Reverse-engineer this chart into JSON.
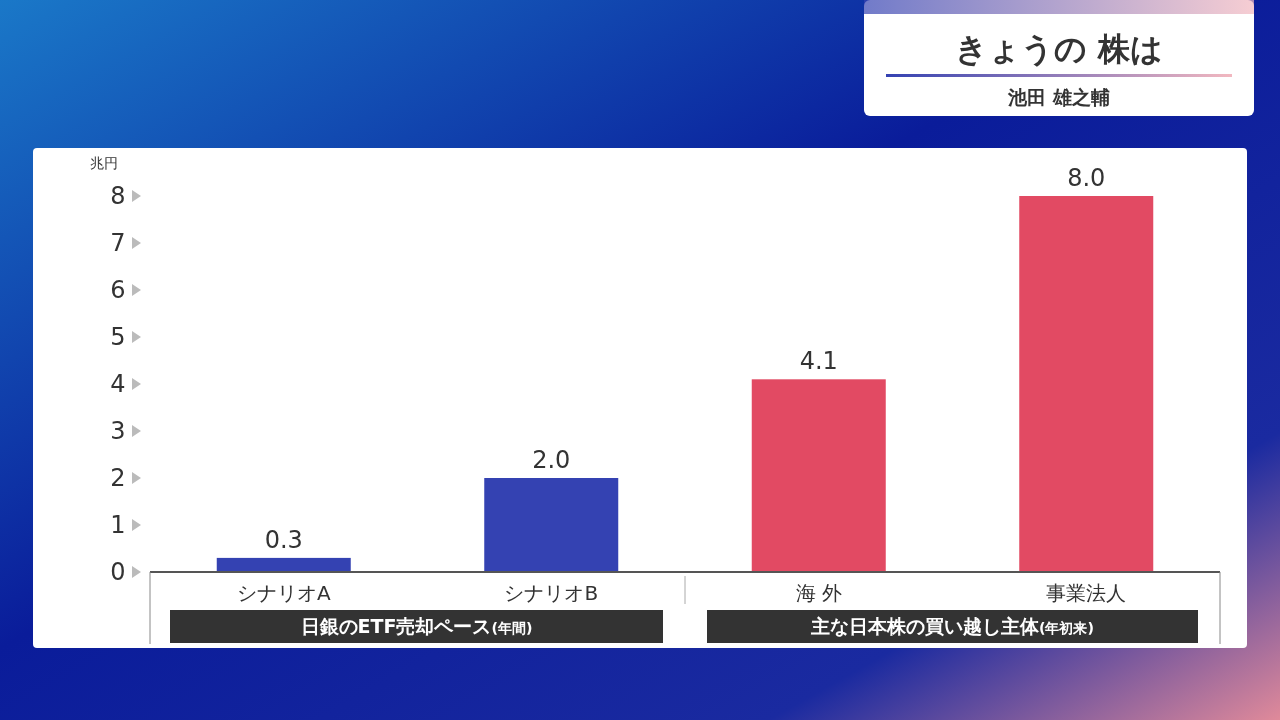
{
  "chart_data": {
    "type": "bar",
    "title": "きょうの 株は",
    "subtitle": "池田 雄之輔",
    "ylabel": "兆円",
    "categories": [
      "シナリオA",
      "シナリオB",
      "海 外",
      "事業法人"
    ],
    "values": [
      0.3,
      2.0,
      4.1,
      8.0
    ],
    "colors": [
      "#3442b2",
      "#3442b2",
      "#e24a63",
      "#e24a63"
    ],
    "value_labels": [
      "0.3",
      "2.0",
      "4.1",
      "8.0"
    ],
    "ylim": [
      0,
      8
    ],
    "yticks": [
      0,
      1,
      2,
      3,
      4,
      5,
      6,
      7,
      8
    ],
    "grid": false,
    "annotations": [
      "日銀のETF売却ペース$_{(年間)}$",
      "主な日本株の買い越し主体$_{(年初来)}$"
    ]
  }
}
